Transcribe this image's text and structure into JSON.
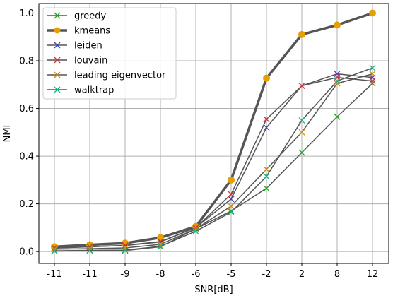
{
  "chart_data": {
    "type": "line",
    "xlabel": "SNR[dB]",
    "ylabel": "NMI",
    "categories": [
      "-11",
      "-11",
      "-9",
      "-8",
      "-6",
      "-5",
      "-2",
      "2",
      "8",
      "12"
    ],
    "yticks": [
      "0.0",
      "0.2",
      "0.4",
      "0.6",
      "0.8",
      "1.0"
    ],
    "ylim": [
      -0.05,
      1.04
    ],
    "grid": true,
    "legend_position": "top-left",
    "line_color": "#555555",
    "series": [
      {
        "name": "greedy",
        "marker": "x",
        "color": "#2ca02c",
        "emphasis": false,
        "values": [
          0.002,
          0.004,
          0.004,
          0.02,
          0.095,
          0.17,
          0.265,
          0.415,
          0.565,
          0.705
        ]
      },
      {
        "name": "kmeans",
        "marker": "o",
        "color": "#e69f00",
        "emphasis": true,
        "values": [
          0.02,
          0.028,
          0.035,
          0.058,
          0.105,
          0.3,
          0.727,
          0.91,
          0.95,
          1.0
        ]
      },
      {
        "name": "leiden",
        "marker": "x",
        "color": "#4040c0",
        "emphasis": false,
        "values": [
          0.015,
          0.02,
          0.025,
          0.04,
          0.1,
          0.22,
          0.52,
          0.695,
          0.745,
          0.73
        ]
      },
      {
        "name": "louvain",
        "marker": "x",
        "color": "#dd3030",
        "emphasis": false,
        "values": [
          0.014,
          0.02,
          0.026,
          0.042,
          0.1,
          0.24,
          0.555,
          0.695,
          0.73,
          0.715
        ]
      },
      {
        "name": "leading eigenvector",
        "marker": "x",
        "color": "#d49000",
        "emphasis": false,
        "values": [
          0.01,
          0.012,
          0.015,
          0.03,
          0.095,
          0.19,
          0.345,
          0.5,
          0.705,
          0.745
        ]
      },
      {
        "name": "walktrap",
        "marker": "x",
        "color": "#20b080",
        "emphasis": false,
        "values": [
          0.003,
          0.005,
          0.006,
          0.022,
          0.085,
          0.165,
          0.315,
          0.55,
          0.715,
          0.77
        ]
      }
    ]
  }
}
